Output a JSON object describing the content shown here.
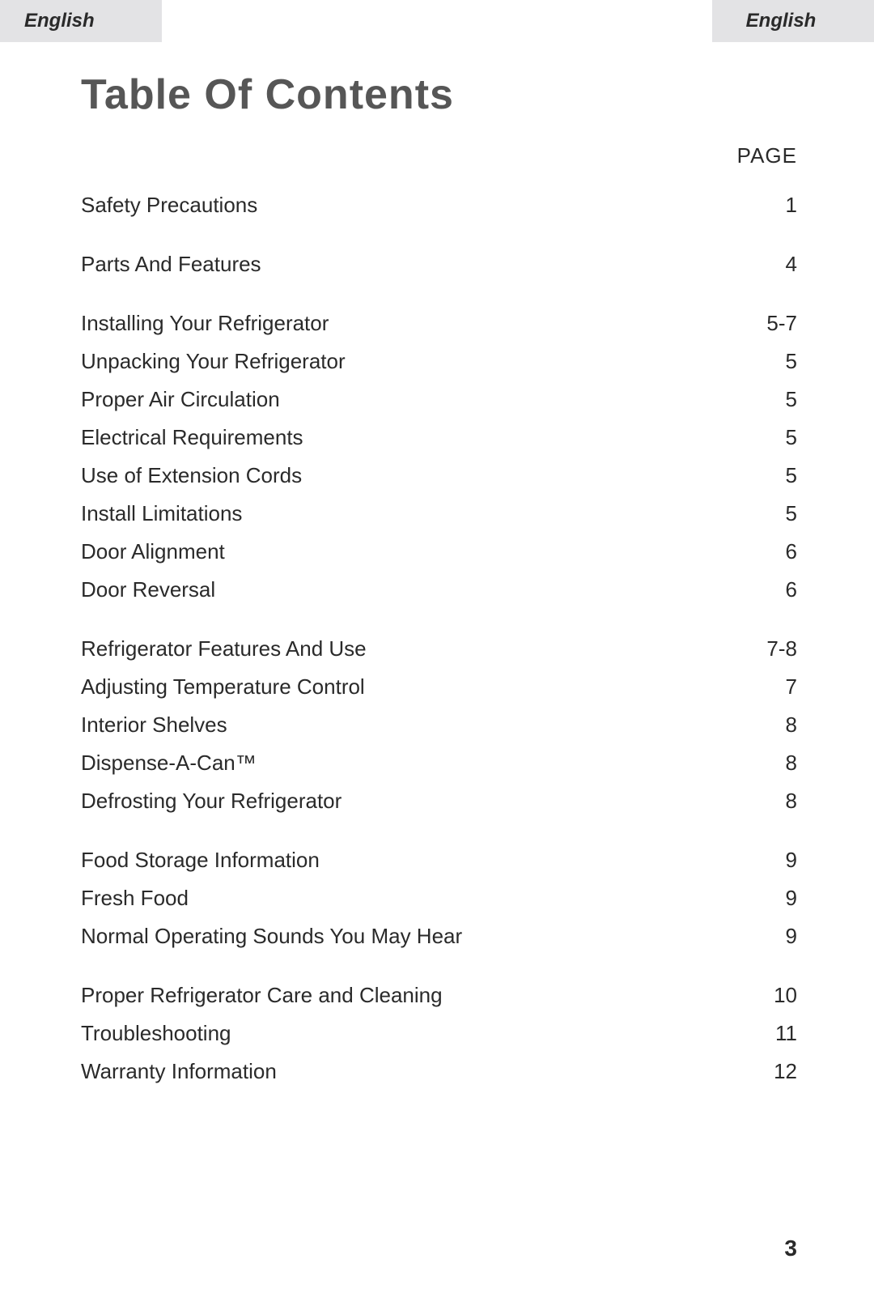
{
  "header": {
    "tab_left": "English",
    "tab_right": "English"
  },
  "title": "Table Of Contents",
  "page_label": "PAGE",
  "sections": [
    {
      "rows": [
        {
          "title": "Safety Precautions",
          "page": "1"
        }
      ]
    },
    {
      "rows": [
        {
          "title": "Parts And Features",
          "page": "4"
        }
      ]
    },
    {
      "rows": [
        {
          "title": "Installing Your Refrigerator",
          "page": "5-7"
        },
        {
          "title": "Unpacking Your Refrigerator",
          "page": "5"
        },
        {
          "title": "Proper Air Circulation",
          "page": "5"
        },
        {
          "title": "Electrical Requirements",
          "page": "5"
        },
        {
          "title": "Use of Extension Cords",
          "page": "5"
        },
        {
          "title": "Install Limitations",
          "page": "5"
        },
        {
          "title": "Door Alignment",
          "page": "6"
        },
        {
          "title": "Door Reversal",
          "page": "6"
        }
      ]
    },
    {
      "rows": [
        {
          "title": "Refrigerator Features And Use",
          "page": "7-8"
        },
        {
          "title": "Adjusting Temperature Control",
          "page": "7"
        },
        {
          "title": "Interior Shelves",
          "page": "8"
        },
        {
          "title": "Dispense-A-Can™",
          "page": "8"
        },
        {
          "title": "Defrosting Your Refrigerator",
          "page": "8"
        }
      ]
    },
    {
      "rows": [
        {
          "title": "Food Storage Information",
          "page": "9"
        },
        {
          "title": "Fresh Food",
          "page": "9"
        },
        {
          "title": "Normal Operating Sounds You May Hear",
          "page": "9"
        }
      ]
    },
    {
      "rows": [
        {
          "title": "Proper Refrigerator Care and Cleaning",
          "page": "10"
        },
        {
          "title": "Troubleshooting",
          "page": "11"
        },
        {
          "title": "Warranty Information",
          "page": "12"
        }
      ]
    }
  ],
  "page_number": "3",
  "colors": {
    "title_color": "#565656",
    "text_color": "#2a2a2a",
    "tab_bg": "#e3e3e5",
    "page_bg": "#ffffff"
  },
  "typography": {
    "title_fontsize": 52,
    "body_fontsize": 26,
    "tab_fontsize": 24,
    "page_label_fontsize": 26,
    "page_number_fontsize": 28
  }
}
